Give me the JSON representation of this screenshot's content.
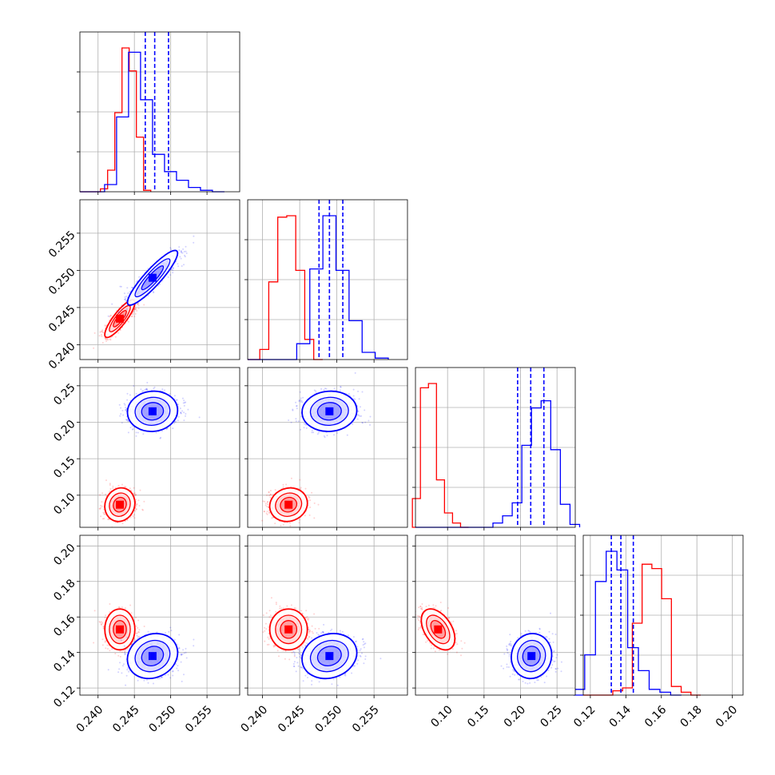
{
  "colors": {
    "red": "#ff0000",
    "blue": "#0000ff",
    "grid": "#b0b0b0",
    "frame": "#000000"
  },
  "chart_data": {
    "type": "corner",
    "parameters": [
      {
        "range": [
          0.2375,
          0.2595
        ],
        "ticks": [
          0.24,
          0.245,
          0.25,
          0.255
        ],
        "tick_labels": [
          "0.240",
          "0.245",
          "0.250",
          "0.255"
        ]
      },
      {
        "range": [
          0.238,
          0.2595
        ],
        "ticks": [
          0.24,
          0.245,
          0.25,
          0.255
        ],
        "tick_labels": [
          "0.240",
          "0.245",
          "0.250",
          "0.255"
        ]
      },
      {
        "range": [
          0.056,
          0.275
        ],
        "ticks": [
          0.1,
          0.15,
          0.2,
          0.25
        ],
        "tick_labels": [
          "0.10",
          "0.15",
          "0.20",
          "0.25"
        ]
      },
      {
        "range": [
          0.116,
          0.206
        ],
        "ticks": [
          0.12,
          0.14,
          0.16,
          0.18,
          0.2
        ],
        "tick_labels": [
          "0.12",
          "0.14",
          "0.16",
          "0.18",
          "0.20"
        ]
      }
    ],
    "series": [
      {
        "color": "red",
        "mean": [
          0.243,
          0.2435,
          0.087,
          0.153
        ],
        "std": [
          0.0009,
          0.0011,
          0.01,
          0.005
        ],
        "rho": [
          [
            1,
            0.85,
            0.1,
            0.0
          ],
          [
            0.85,
            1,
            0.1,
            0.0
          ],
          [
            0.1,
            0.1,
            1,
            -0.45
          ],
          [
            0.0,
            0.0,
            -0.45,
            1
          ]
        ]
      },
      {
        "color": "blue",
        "mean": [
          0.2475,
          0.249,
          0.215,
          0.138
        ],
        "std": [
          0.0015,
          0.0016,
          0.012,
          0.0055
        ],
        "rho": [
          [
            1,
            0.9,
            0.05,
            0.15
          ],
          [
            0.9,
            1,
            0.05,
            0.15
          ],
          [
            0.05,
            0.05,
            1,
            0.05
          ],
          [
            0.15,
            0.15,
            0.05,
            1
          ]
        ]
      }
    ],
    "quantiles": {
      "series": "blue",
      "values": [
        [
          0.2465,
          0.2478,
          0.2497
        ],
        [
          0.2476,
          0.249,
          0.2508
        ],
        [
          0.196,
          0.214,
          0.232
        ],
        [
          0.1318,
          0.1372,
          0.1442
        ]
      ]
    },
    "histograms": [
      {
        "bins": [
          0.2375,
          0.2395
        ],
        "red_counts": [
          0.0,
          0.02,
          0.15,
          0.55,
          1.0,
          0.84,
          0.38,
          0.01
        ],
        "blue_counts": [
          0.0,
          0.05,
          0.52,
          0.97,
          0.64,
          0.26,
          0.14,
          0.08,
          0.03,
          0.01,
          0.0
        ]
      },
      {
        "red_counts": [
          0.07,
          0.54,
          0.99,
          1.0,
          0.62,
          0.14,
          0.0
        ],
        "blue_counts": [
          0.0,
          0.11,
          0.63,
          1.0,
          0.62,
          0.27,
          0.05,
          0.01
        ]
      },
      {
        "red_counts": [
          0.2,
          0.97,
          1.0,
          0.33,
          0.1,
          0.03,
          0.0
        ],
        "blue_counts": [
          0.03,
          0.08,
          0.17,
          0.57,
          0.83,
          0.88,
          0.54,
          0.16,
          0.02
        ]
      },
      {
        "red_counts": [
          0.0,
          0.03,
          0.05,
          0.5,
          0.91,
          0.88,
          0.67,
          0.06,
          0.02,
          0.0
        ],
        "blue_counts": [
          0.04,
          0.28,
          0.79,
          1.0,
          0.87,
          0.33,
          0.17,
          0.04,
          0.02,
          0.0
        ]
      }
    ]
  }
}
